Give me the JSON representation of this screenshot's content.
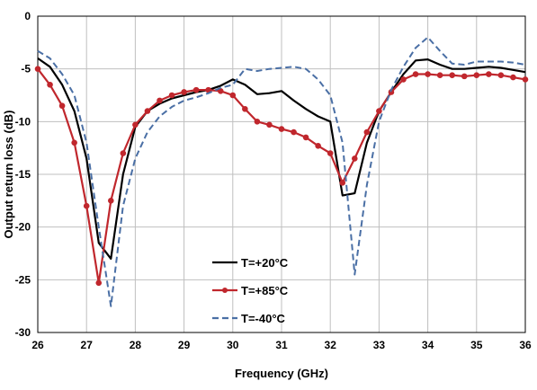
{
  "chart_data": {
    "type": "line",
    "xlabel": "Frequency (GHz)",
    "ylabel": "Output return loss (dB)",
    "xlim": [
      26,
      36
    ],
    "ylim": [
      -30,
      0
    ],
    "x_ticks": [
      26,
      27,
      28,
      29,
      30,
      31,
      32,
      33,
      34,
      35,
      36
    ],
    "y_ticks": [
      0,
      -5,
      -10,
      -15,
      -20,
      -25,
      -30
    ],
    "grid": true,
    "legend_position": "bottom-center",
    "series": [
      {
        "name": "T=+20°C",
        "color": "#000000",
        "style": "solid",
        "markers": false,
        "x": [
          26.0,
          26.25,
          26.5,
          26.75,
          27.0,
          27.25,
          27.5,
          27.75,
          28.0,
          28.25,
          28.5,
          28.75,
          29.0,
          29.25,
          29.5,
          29.75,
          30.0,
          30.25,
          30.5,
          30.75,
          31.0,
          31.25,
          31.5,
          31.75,
          32.0,
          32.25,
          32.5,
          32.75,
          33.0,
          33.25,
          33.5,
          33.75,
          34.0,
          34.25,
          34.5,
          34.75,
          35.0,
          35.25,
          35.5,
          35.75,
          36.0
        ],
        "values": [
          -4.0,
          -4.8,
          -6.5,
          -9.0,
          -13.5,
          -21.5,
          -23.0,
          -15.0,
          -10.5,
          -9.0,
          -8.3,
          -7.8,
          -7.5,
          -7.2,
          -7.0,
          -6.6,
          -6.0,
          -6.5,
          -7.4,
          -7.3,
          -7.1,
          -8.0,
          -8.8,
          -9.5,
          -10.0,
          -17.0,
          -16.8,
          -12.0,
          -9.0,
          -7.2,
          -5.5,
          -4.2,
          -4.1,
          -4.6,
          -5.0,
          -5.0,
          -4.9,
          -4.8,
          -4.9,
          -5.1,
          -5.3
        ]
      },
      {
        "name": "T=+85°C",
        "color": "#c0272d",
        "style": "solid",
        "markers": true,
        "x": [
          26.0,
          26.25,
          26.5,
          26.75,
          27.0,
          27.25,
          27.5,
          27.75,
          28.0,
          28.25,
          28.5,
          28.75,
          29.0,
          29.25,
          29.5,
          29.75,
          30.0,
          30.25,
          30.5,
          30.75,
          31.0,
          31.25,
          31.5,
          31.75,
          32.0,
          32.25,
          32.5,
          32.75,
          33.0,
          33.25,
          33.5,
          33.75,
          34.0,
          34.25,
          34.5,
          34.75,
          35.0,
          35.25,
          35.5,
          35.75,
          36.0
        ],
        "values": [
          -5.0,
          -6.5,
          -8.5,
          -12.0,
          -18.0,
          -25.3,
          -17.5,
          -13.0,
          -10.3,
          -9.0,
          -8.0,
          -7.5,
          -7.2,
          -7.0,
          -7.0,
          -7.1,
          -7.5,
          -8.8,
          -10.0,
          -10.3,
          -10.7,
          -11.0,
          -11.5,
          -12.3,
          -13.0,
          -15.8,
          -13.5,
          -11.0,
          -9.0,
          -7.2,
          -6.0,
          -5.5,
          -5.5,
          -5.6,
          -5.6,
          -5.7,
          -5.6,
          -5.5,
          -5.6,
          -5.8,
          -6.0
        ]
      },
      {
        "name": "T=-40°C",
        "color": "#4a6fa5",
        "style": "dashed",
        "markers": false,
        "x": [
          26.0,
          26.25,
          26.5,
          26.75,
          27.0,
          27.25,
          27.5,
          27.75,
          28.0,
          28.25,
          28.5,
          28.75,
          29.0,
          29.25,
          29.5,
          29.75,
          30.0,
          30.25,
          30.5,
          30.75,
          31.0,
          31.25,
          31.5,
          31.75,
          32.0,
          32.25,
          32.5,
          32.75,
          33.0,
          33.25,
          33.5,
          33.75,
          34.0,
          34.25,
          34.5,
          34.75,
          35.0,
          35.25,
          35.5,
          35.75,
          36.0
        ],
        "values": [
          -3.3,
          -4.0,
          -5.5,
          -7.5,
          -12.0,
          -20.0,
          -27.5,
          -18.0,
          -13.5,
          -11.0,
          -9.5,
          -8.6,
          -8.0,
          -7.7,
          -7.3,
          -6.8,
          -6.5,
          -5.0,
          -5.2,
          -5.0,
          -4.9,
          -4.8,
          -5.0,
          -6.0,
          -7.5,
          -12.0,
          -24.5,
          -16.0,
          -10.0,
          -7.0,
          -4.8,
          -3.0,
          -2.0,
          -3.3,
          -4.5,
          -4.6,
          -4.3,
          -4.3,
          -4.3,
          -4.4,
          -4.6
        ]
      }
    ]
  }
}
